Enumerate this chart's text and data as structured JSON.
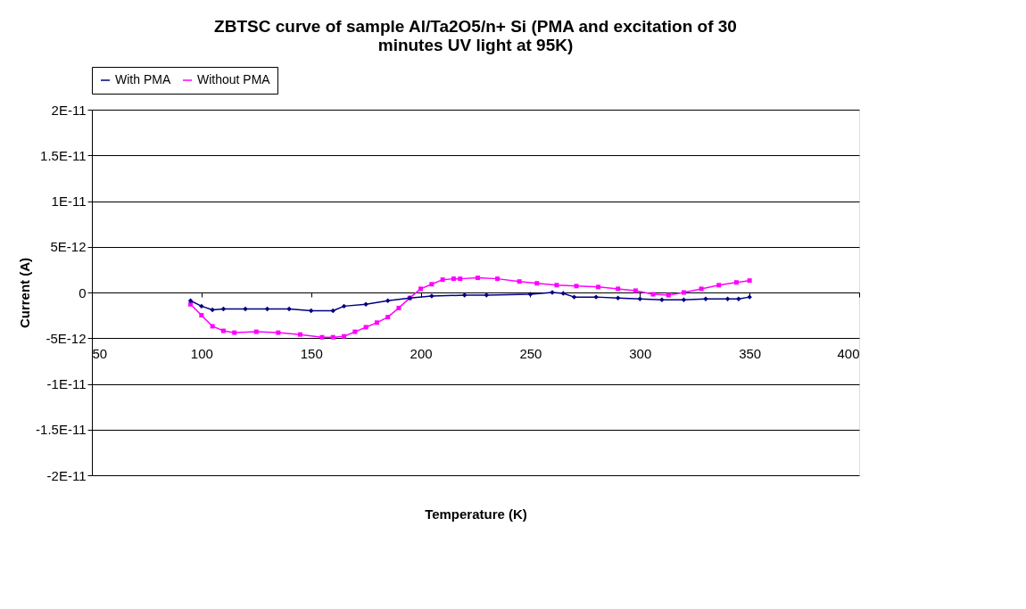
{
  "chart_data": {
    "type": "line",
    "title": "ZBTSC curve of sample Al/Ta2O5/n+ Si (PMA and excitation of 30 minutes UV light at 95K)",
    "xlabel": "Temperature (K)",
    "ylabel": "Current (A)",
    "xlim": [
      50,
      400
    ],
    "xticks": [
      50,
      100,
      150,
      200,
      250,
      300,
      350,
      400
    ],
    "ylim": [
      -2e-11,
      2e-11
    ],
    "yticks": [
      {
        "value": -2e-11,
        "label": "-2E-11"
      },
      {
        "value": -1.5e-11,
        "label": "-1.5E-11"
      },
      {
        "value": -1e-11,
        "label": "-1E-11"
      },
      {
        "value": -5e-12,
        "label": "-5E-12"
      },
      {
        "value": 0,
        "label": "0"
      },
      {
        "value": 5e-12,
        "label": "5E-12"
      },
      {
        "value": 1e-11,
        "label": "1E-11"
      },
      {
        "value": 1.5e-11,
        "label": "1.5E-11"
      },
      {
        "value": 2e-11,
        "label": "2E-11"
      }
    ],
    "grid": "y",
    "legend": "top",
    "line_style": "solid",
    "series": [
      {
        "name": "With PMA",
        "color": "#000080",
        "marker": "diamond",
        "x": [
          95,
          100,
          105,
          110,
          120,
          130,
          140,
          150,
          160,
          165,
          175,
          185,
          195,
          205,
          220,
          230,
          250,
          260,
          265,
          270,
          280,
          290,
          300,
          310,
          320,
          330,
          340,
          345,
          350
        ],
        "values": [
          -9e-13,
          -1.5e-12,
          -1.9e-12,
          -1.8e-12,
          -1.8e-12,
          -1.8e-12,
          -1.8e-12,
          -2e-12,
          -2e-12,
          -1.5e-12,
          -1.3e-12,
          -9e-13,
          -6e-13,
          -4e-13,
          -3e-13,
          -3e-13,
          -2e-13,
          0,
          -1e-13,
          -5e-13,
          -5e-13,
          -6e-13,
          -7e-13,
          -8e-13,
          -8e-13,
          -7e-13,
          -7e-13,
          -7e-13,
          -5e-13
        ]
      },
      {
        "name": "Without PMA",
        "color": "#ff00ff",
        "marker": "square",
        "x": [
          95,
          100,
          105,
          110,
          115,
          125,
          135,
          145,
          155,
          160,
          165,
          170,
          175,
          180,
          185,
          190,
          195,
          200,
          205,
          210,
          215,
          218,
          226,
          235,
          245,
          253,
          262,
          271,
          281,
          290,
          298,
          306,
          313,
          320,
          328,
          336,
          344,
          350
        ],
        "values": [
          -1.3e-12,
          -2.5e-12,
          -3.7e-12,
          -4.2e-12,
          -4.4e-12,
          -4.3e-12,
          -4.4e-12,
          -4.6e-12,
          -4.9e-12,
          -4.9e-12,
          -4.8e-12,
          -4.3e-12,
          -3.8e-12,
          -3.3e-12,
          -2.7e-12,
          -1.7e-12,
          -6e-13,
          4e-13,
          9e-13,
          1.4e-12,
          1.5e-12,
          1.5e-12,
          1.6e-12,
          1.5e-12,
          1.2e-12,
          1e-12,
          8e-13,
          7e-13,
          6e-13,
          4e-13,
          2e-13,
          -2e-13,
          -3e-13,
          0,
          4e-13,
          8e-13,
          1.1e-12,
          1.3e-12
        ]
      }
    ]
  }
}
